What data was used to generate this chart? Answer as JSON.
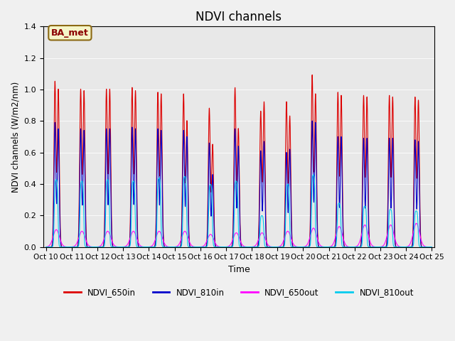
{
  "title": "NDVI channels",
  "xlabel": "Time",
  "ylabel": "NDVI channels (W/m2/nm)",
  "ylim": [
    0.0,
    1.4
  ],
  "background_color": "#f0f0f0",
  "plot_bg_color": "#e8e8e8",
  "annotation_text": "BA_met",
  "annotation_bg": "#f5f5c8",
  "annotation_border": "#8B6914",
  "annotation_text_color": "#8B0000",
  "x_tick_labels": [
    "Oct 10",
    "Oct 11",
    "Oct 12",
    "Oct 13",
    "Oct 14",
    "Oct 15",
    "Oct 16",
    "Oct 17",
    "Oct 18",
    "Oct 19",
    "Oct 20",
    "Oct 21",
    "Oct 22",
    "Oct 23",
    "Oct 24",
    "Oct 25"
  ],
  "colors": {
    "NDVI_650in": "#dd0000",
    "NDVI_810in": "#0000cc",
    "NDVI_650out": "#ff00ff",
    "NDVI_810out": "#00ccee"
  },
  "n_periods": 15,
  "peaks_650in_a": [
    1.05,
    1.0,
    1.0,
    1.01,
    0.98,
    0.97,
    0.88,
    1.01,
    0.86,
    0.92,
    1.09,
    0.98,
    0.96,
    0.96,
    0.95
  ],
  "peaks_650in_b": [
    1.0,
    0.99,
    1.0,
    0.99,
    0.97,
    0.8,
    0.65,
    0.75,
    0.92,
    0.83,
    0.97,
    0.96,
    0.95,
    0.95,
    0.93
  ],
  "peaks_810in_a": [
    0.79,
    0.75,
    0.75,
    0.76,
    0.75,
    0.74,
    0.66,
    0.75,
    0.61,
    0.6,
    0.8,
    0.7,
    0.69,
    0.69,
    0.68
  ],
  "peaks_810in_b": [
    0.75,
    0.74,
    0.75,
    0.75,
    0.74,
    0.7,
    0.46,
    0.64,
    0.67,
    0.62,
    0.79,
    0.7,
    0.69,
    0.69,
    0.67
  ],
  "peaks_650out": [
    0.11,
    0.1,
    0.1,
    0.1,
    0.1,
    0.1,
    0.08,
    0.09,
    0.09,
    0.1,
    0.12,
    0.13,
    0.14,
    0.14,
    0.15
  ],
  "peaks_810out": [
    0.43,
    0.42,
    0.43,
    0.42,
    0.44,
    0.45,
    0.4,
    0.42,
    0.2,
    0.4,
    0.46,
    0.28,
    0.26,
    0.24,
    0.23
  ]
}
